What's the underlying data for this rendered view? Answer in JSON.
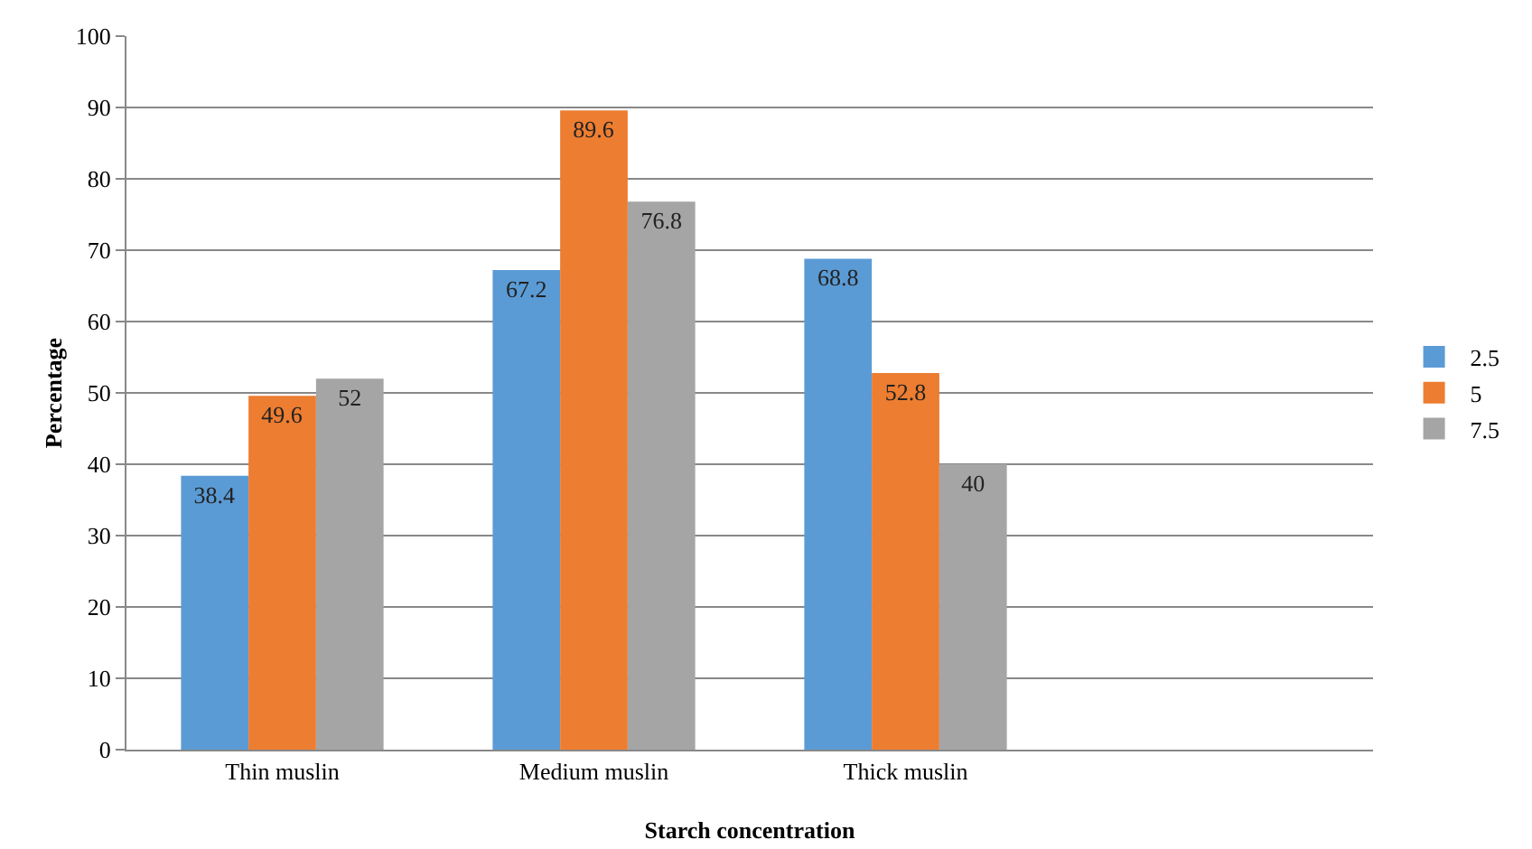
{
  "chart_data": {
    "type": "bar",
    "xlabel": "Starch concentration",
    "ylabel": "Percentage",
    "categories": [
      "Thin muslin",
      "Medium muslin",
      "Thick muslin",
      null
    ],
    "series": [
      {
        "name": "2.5",
        "color": "#5b9bd5",
        "values": [
          38.4,
          67.2,
          68.8,
          null
        ]
      },
      {
        "name": "5",
        "color": "#ed7d31",
        "values": [
          49.6,
          89.6,
          52.8,
          null
        ]
      },
      {
        "name": "7.5",
        "color": "#a5a5a5",
        "values": [
          52,
          76.8,
          40,
          null
        ]
      }
    ],
    "ylim": [
      0,
      100
    ],
    "yticks": [
      0,
      10,
      20,
      30,
      40,
      50,
      60,
      70,
      80,
      90,
      100
    ],
    "grid": "y",
    "legend": "right",
    "data_labels": true
  }
}
